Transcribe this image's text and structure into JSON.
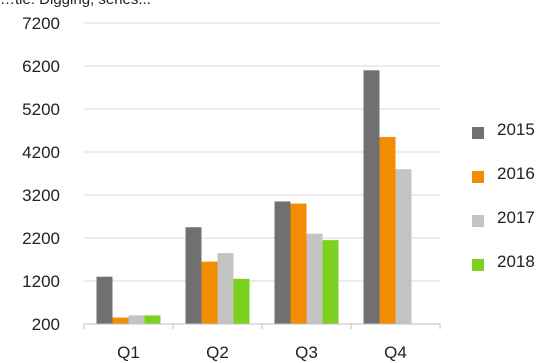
{
  "chart_data": {
    "type": "bar",
    "title": "…tle: Digging, series...",
    "categories": [
      "Q1",
      "Q2",
      "Q3",
      "Q4"
    ],
    "series": [
      {
        "name": "2015",
        "color": "#707070",
        "values": [
          1300,
          2450,
          3050,
          6100
        ]
      },
      {
        "name": "2016",
        "color": "#f28c00",
        "values": [
          350,
          1650,
          3000,
          4550
        ]
      },
      {
        "name": "2017",
        "color": "#c4c4c4",
        "values": [
          400,
          1850,
          2300,
          3800
        ]
      },
      {
        "name": "2018",
        "color": "#7ad11e",
        "values": [
          400,
          1250,
          2150,
          null
        ]
      }
    ],
    "yticks": [
      200,
      1200,
      2200,
      3200,
      4200,
      5200,
      6200,
      7200
    ],
    "ylim": [
      200,
      7200
    ],
    "grid": true,
    "legend_position": "right"
  }
}
